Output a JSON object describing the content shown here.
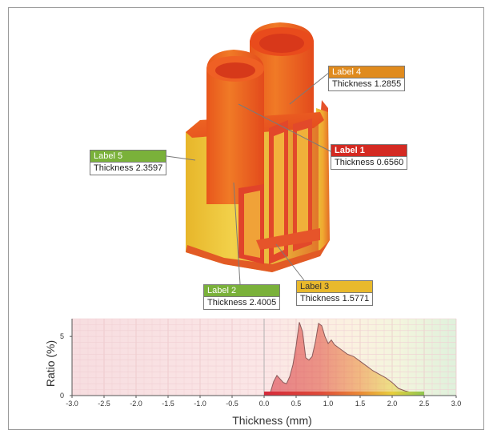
{
  "labels": [
    {
      "id": "label-4",
      "name": "Label 4",
      "value": "Thickness 1.2855",
      "color": "#e08b1e",
      "text_color": "#ffffff"
    },
    {
      "id": "label-1",
      "name": "Label 1",
      "value": "Thickness 0.6560",
      "color": "#d42a22",
      "text_color": "#ffffff"
    },
    {
      "id": "label-5",
      "name": "Label 5",
      "value": "Thickness 2.3597",
      "color": "#7ab13a",
      "text_color": "#ffffff"
    },
    {
      "id": "label-2",
      "name": "Label 2",
      "value": "Thickness 2.4005",
      "color": "#7ab13a",
      "text_color": "#ffffff"
    },
    {
      "id": "label-3",
      "name": "Label 3",
      "value": "Thickness 1.5771",
      "color": "#e9b92c",
      "text_color": "#333333"
    }
  ],
  "chart_data": {
    "type": "area",
    "xlabel": "Thickness (mm)",
    "ylabel": "Ratio (%)",
    "xlim": [
      -3.0,
      3.0
    ],
    "ylim": [
      0,
      6.5
    ],
    "xticks": [
      "-3.0",
      "-2.5",
      "-2.0",
      "-1.5",
      "-1.0",
      "-0.5",
      "0.0",
      "0.5",
      "1.0",
      "1.5",
      "2.0",
      "2.5",
      "3.0"
    ],
    "yticks": [
      "0",
      "5"
    ],
    "grid": true,
    "x": [
      0.0,
      0.1,
      0.15,
      0.2,
      0.25,
      0.3,
      0.35,
      0.4,
      0.45,
      0.5,
      0.55,
      0.6,
      0.65,
      0.7,
      0.75,
      0.8,
      0.85,
      0.9,
      0.95,
      1.0,
      1.05,
      1.1,
      1.2,
      1.3,
      1.4,
      1.5,
      1.6,
      1.7,
      1.8,
      1.9,
      2.0,
      2.1,
      2.2,
      2.3,
      2.4,
      2.5
    ],
    "y": [
      0.0,
      0.3,
      1.2,
      1.7,
      1.4,
      1.1,
      1.0,
      1.6,
      2.6,
      4.2,
      6.2,
      5.4,
      3.2,
      3.0,
      3.3,
      4.5,
      6.1,
      5.9,
      5.0,
      4.4,
      4.7,
      4.3,
      3.9,
      3.5,
      3.3,
      2.9,
      2.5,
      2.1,
      1.8,
      1.5,
      1.1,
      0.6,
      0.4,
      0.25,
      0.1,
      0.0
    ]
  }
}
